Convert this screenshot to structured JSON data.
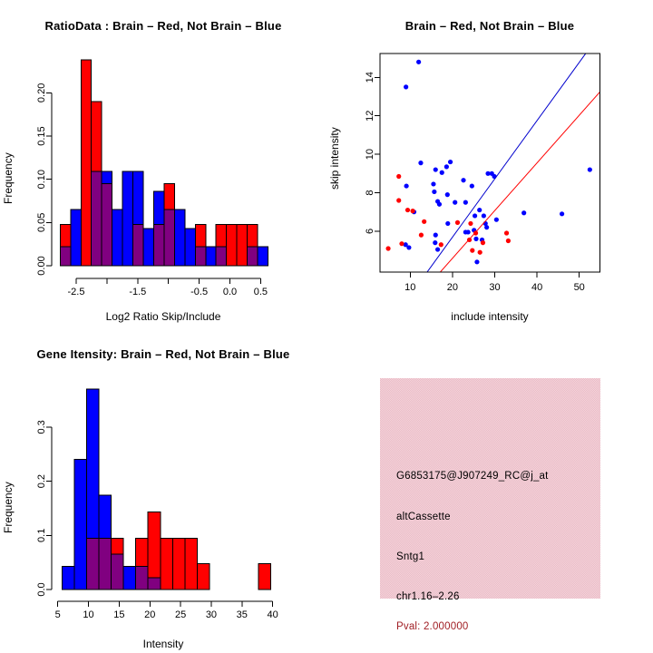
{
  "colors": {
    "brain_red": "#ff0000",
    "notbrain_blue": "#0000ff",
    "overlap_purple": "#800080",
    "blue_line": "#0000cd",
    "red_line": "#ff0000",
    "pval_red": "#a01e24",
    "info_bg_pink": "#efc5cf"
  },
  "chart_data": [
    {
      "id": "ratio_histogram",
      "type": "bar",
      "title": "RatioData : Brain – Red, Not Brain – Blue",
      "xlabel": "Log2 Ratio Skip/Include",
      "ylabel": "Frequency",
      "legend": "overlaid histograms; Brain=red (n=21), Not Brain=blue (n=46), overlap shown purple",
      "bin_start": -2.76,
      "bin_width": 0.169,
      "series": [
        {
          "name": "Brain",
          "color": "#ff0000",
          "values": [
            0.048,
            0,
            0.238,
            0.19,
            0.095,
            0,
            0,
            0.048,
            0,
            0.048,
            0.095,
            0,
            0,
            0.048,
            0,
            0.048,
            0.048,
            0.048,
            0.048,
            0
          ]
        },
        {
          "name": "Not Brain",
          "color": "#0000ff",
          "values": [
            0.022,
            0.065,
            0,
            0.109,
            0.109,
            0.065,
            0.109,
            0.109,
            0.043,
            0.086,
            0.065,
            0.065,
            0.043,
            0.022,
            0.022,
            0.022,
            0,
            0,
            0.022,
            0.022
          ]
        }
      ],
      "x_ticks": [
        {
          "v": -2.5,
          "label": "-2.5"
        },
        {
          "v": -2.0,
          "label": ""
        },
        {
          "v": -1.5,
          "label": "-1.5"
        },
        {
          "v": -1.0,
          "label": ""
        },
        {
          "v": -0.5,
          "label": "-0.5"
        },
        {
          "v": 0.0,
          "label": "0.0"
        },
        {
          "v": 0.5,
          "label": "0.5"
        }
      ],
      "y_ticks": [
        {
          "v": 0.0,
          "label": "0.00"
        },
        {
          "v": 0.05,
          "label": "0.05"
        },
        {
          "v": 0.1,
          "label": "0.10"
        },
        {
          "v": 0.15,
          "label": "0.15"
        },
        {
          "v": 0.2,
          "label": "0.20"
        }
      ],
      "xlim": [
        -2.9,
        0.85
      ],
      "ylim": [
        0,
        0.24
      ],
      "grid": false
    },
    {
      "id": "intensity_scatter",
      "type": "scatter",
      "title": "Brain – Red, Not Brain – Blue",
      "xlabel": "include intensity",
      "ylabel": "skip intensity",
      "x_ticks": [
        {
          "v": 10,
          "label": "10"
        },
        {
          "v": 20,
          "label": "20"
        },
        {
          "v": 30,
          "label": "30"
        },
        {
          "v": 40,
          "label": "40"
        },
        {
          "v": 50,
          "label": "50"
        }
      ],
      "y_ticks": [
        {
          "v": 6,
          "label": "6"
        },
        {
          "v": 8,
          "label": "8"
        },
        {
          "v": 10,
          "label": "10"
        },
        {
          "v": 12,
          "label": "12"
        },
        {
          "v": 14,
          "label": "14"
        }
      ],
      "xlim": [
        2.9,
        54.9
      ],
      "ylim": [
        3.87,
        15.23
      ],
      "series": [
        {
          "name": "Not Brain",
          "color": "#0000ff",
          "points": [
            [
              12,
              14.8
            ],
            [
              9,
              13.5
            ],
            [
              52.5,
              9.2
            ],
            [
              12.5,
              9.55
            ],
            [
              19.5,
              9.6
            ],
            [
              16,
              9.2
            ],
            [
              18.6,
              9.35
            ],
            [
              17.5,
              9.05
            ],
            [
              28.4,
              9.0
            ],
            [
              29.3,
              9.0
            ],
            [
              29.9,
              8.85
            ],
            [
              22.6,
              8.65
            ],
            [
              15.5,
              8.45
            ],
            [
              24.6,
              8.35
            ],
            [
              9.1,
              8.35
            ],
            [
              15.7,
              8.05
            ],
            [
              18.8,
              7.9
            ],
            [
              16.5,
              7.55
            ],
            [
              16.9,
              7.4
            ],
            [
              20.6,
              7.5
            ],
            [
              23.1,
              7.5
            ],
            [
              26.4,
              7.1
            ],
            [
              10.9,
              7.0
            ],
            [
              36.9,
              6.95
            ],
            [
              45.9,
              6.9
            ],
            [
              27.4,
              6.8
            ],
            [
              25.3,
              6.8
            ],
            [
              30.4,
              6.6
            ],
            [
              18.9,
              6.4
            ],
            [
              27.8,
              6.4
            ],
            [
              28.1,
              6.2
            ],
            [
              23.1,
              5.95
            ],
            [
              23.7,
              5.95
            ],
            [
              25.1,
              6.05
            ],
            [
              16,
              5.8
            ],
            [
              25.6,
              5.6
            ],
            [
              27,
              5.55
            ],
            [
              15.9,
              5.4
            ],
            [
              8.9,
              5.3
            ],
            [
              9.7,
              5.15
            ],
            [
              16.5,
              5.05
            ],
            [
              25.8,
              4.4
            ]
          ]
        },
        {
          "name": "Brain",
          "color": "#ff0000",
          "points": [
            [
              7.3,
              8.85
            ],
            [
              7.3,
              7.6
            ],
            [
              9.4,
              7.1
            ],
            [
              10.6,
              7.05
            ],
            [
              13.3,
              6.5
            ],
            [
              12.6,
              5.8
            ],
            [
              8.0,
              5.35
            ],
            [
              4.8,
              5.1
            ],
            [
              17.3,
              5.3
            ],
            [
              21.2,
              6.45
            ],
            [
              24.3,
              6.4
            ],
            [
              25.5,
              5.9
            ],
            [
              24.0,
              5.55
            ],
            [
              24.7,
              5.0
            ],
            [
              26.5,
              4.9
            ],
            [
              27.2,
              5.4
            ],
            [
              32.8,
              5.9
            ],
            [
              33.2,
              5.5
            ]
          ]
        }
      ],
      "lines": [
        {
          "name": "blue-line",
          "color": "#0000cd",
          "slope": 0.303,
          "intercept": -0.37
        },
        {
          "name": "red-line",
          "color": "#ff0000",
          "slope": 0.248,
          "intercept": -0.37
        }
      ],
      "grid": false
    },
    {
      "id": "gene_intensity_histogram",
      "type": "bar",
      "title": "Gene Itensity: Brain – Red, Not Brain – Blue",
      "xlabel": "Intensity",
      "ylabel": "Frequency",
      "legend": "overlaid histograms; Brain=red, Not Brain=blue, overlap shown purple",
      "bin_start": 5.7,
      "bin_width": 2,
      "series": [
        {
          "name": "Brain",
          "color": "#ff0000",
          "values": [
            0,
            0,
            0.095,
            0.095,
            0.095,
            0,
            0.095,
            0.143,
            0.095,
            0.095,
            0.095,
            0.048,
            0,
            0,
            0,
            0,
            0.048
          ]
        },
        {
          "name": "Not Brain",
          "color": "#0000ff",
          "values": [
            0.043,
            0.24,
            0.37,
            0.174,
            0.065,
            0.043,
            0.043,
            0.022,
            0,
            0,
            0,
            0,
            0,
            0,
            0,
            0,
            0
          ]
        }
      ],
      "x_ticks": [
        {
          "v": 5,
          "label": "5"
        },
        {
          "v": 10,
          "label": "10"
        },
        {
          "v": 15,
          "label": "15"
        },
        {
          "v": 20,
          "label": "20"
        },
        {
          "v": 25,
          "label": "25"
        },
        {
          "v": 30,
          "label": "30"
        },
        {
          "v": 35,
          "label": "35"
        },
        {
          "v": 40,
          "label": "40"
        }
      ],
      "y_ticks": [
        {
          "v": 0.0,
          "label": "0.0"
        },
        {
          "v": 0.1,
          "label": "0.1"
        },
        {
          "v": 0.2,
          "label": "0.2"
        },
        {
          "v": 0.3,
          "label": "0.3"
        }
      ],
      "xlim": [
        5,
        40
      ],
      "ylim": [
        0,
        0.38
      ],
      "grid": false
    },
    {
      "id": "info_panel",
      "type": "table",
      "lines": [
        {
          "text": "G6853175@J907249_RC@j_at",
          "color": "#000000"
        },
        {
          "text": "altCassette",
          "color": "#000000"
        },
        {
          "text": "Sntg1",
          "color": "#000000"
        },
        {
          "text": "chr1.16–2.26",
          "color": "#000000"
        },
        {
          "text": "Pval: 2.000000",
          "color": "#a01e24"
        }
      ]
    }
  ]
}
